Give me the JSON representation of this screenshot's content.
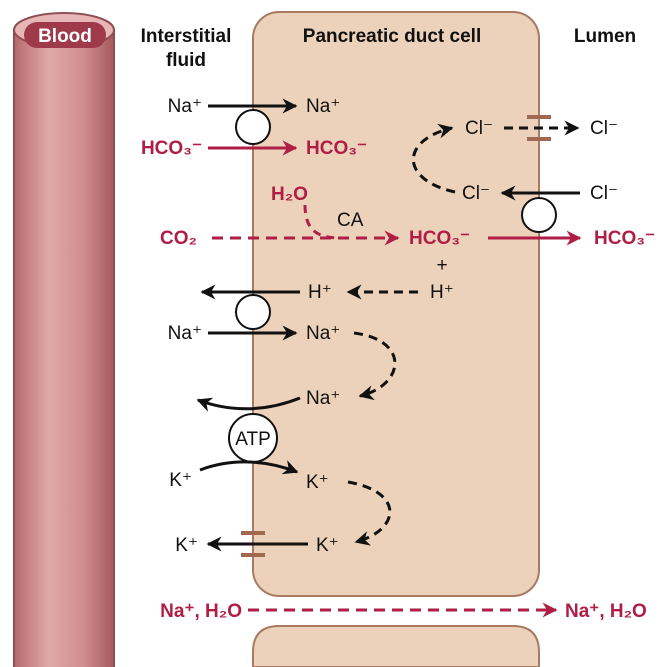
{
  "headers": {
    "blood": "Blood",
    "interstitial_1": "Interstitial",
    "interstitial_2": "fluid",
    "cell": "Pancreatic duct cell",
    "lumen": "Lumen"
  },
  "labels": {
    "na_in_left": "Na⁺",
    "na_in_right": "Na⁺",
    "hco3_in_left": "HCO₃⁻",
    "hco3_in_right": "HCO₃⁻",
    "cl_top_left": "Cl⁻",
    "cl_top_right": "Cl⁻",
    "cl_mid_left": "Cl⁻",
    "cl_mid_right": "Cl⁻",
    "h2o": "H₂O",
    "ca": "CA",
    "co2": "CO₂",
    "hco3_center": "HCO₃⁻",
    "hco3_lumen": "HCO₃⁻",
    "plus": "+",
    "h_left": "H⁺",
    "h_right": "H⁺",
    "na_nhe_left": "Na⁺",
    "na_nhe_right": "Na⁺",
    "na_pump": "Na⁺",
    "atp": "ATP",
    "k_pump_left": "K⁺",
    "k_pump_right": "K⁺",
    "k_out_left": "K⁺",
    "k_out_right": "K⁺",
    "para_left": "Na⁺, H₂O",
    "para_right": "Na⁺, H₂O"
  },
  "colors": {
    "cell_fill": "#ecd2ba",
    "cell_stroke": "#a87a62",
    "vessel": "#d49697",
    "accent_red": "#b01e45",
    "channel": "#a0684f"
  }
}
